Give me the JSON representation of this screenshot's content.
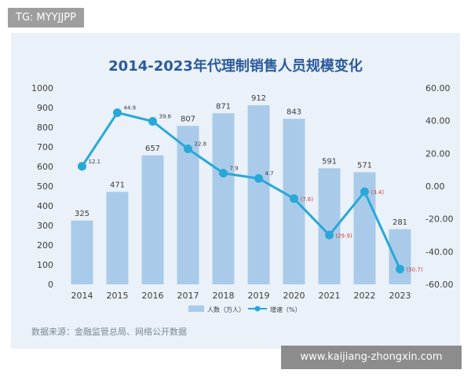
{
  "overlay_tag": "TG: MYYJJPP",
  "watermark": "www.kaijiang-zhongxin.com",
  "source": "数据来源：金融监管总局、网络公开数据",
  "colors": {
    "panel": "#eaf1f9",
    "bar": "#a9cbe9",
    "line": "#29a8d8",
    "title": "#2a5a9c",
    "neg_label": "#d23b3b",
    "axis_text": "#3c3c3c"
  },
  "chart_data": {
    "type": "bar",
    "title": "2014-2023年代理制销售人员规模变化",
    "categories": [
      "2014",
      "2015",
      "2016",
      "2017",
      "2018",
      "2019",
      "2020",
      "2021",
      "2022",
      "2023"
    ],
    "series": [
      {
        "name": "人数（万人）",
        "type": "bar",
        "axis": "left",
        "values": [
          325,
          471,
          657,
          807,
          871,
          912,
          843,
          591,
          571,
          281
        ]
      },
      {
        "name": "增速（%）",
        "type": "line",
        "axis": "right",
        "values": [
          12.1,
          44.9,
          39.6,
          22.8,
          7.9,
          4.7,
          -7.6,
          -29.9,
          -3.4,
          -50.7
        ],
        "labels": [
          "12.1",
          "44.9",
          "39.6",
          "22.8",
          "7.9",
          "4.7",
          "(7.6)",
          "(29.9)",
          "(3.4)",
          "(50.7)"
        ]
      }
    ],
    "ylim": [
      0,
      1000
    ],
    "y_ticks": [
      "0",
      "100",
      "200",
      "300",
      "400",
      "500",
      "600",
      "700",
      "800",
      "900",
      "1000"
    ],
    "y2lim": [
      -60,
      60
    ],
    "y2_ticks": [
      "-60.00",
      "-40.00",
      "-20.00",
      "0.00",
      "20.00",
      "40.00",
      "60.00"
    ],
    "grid": false,
    "legend_position": "bottom"
  }
}
